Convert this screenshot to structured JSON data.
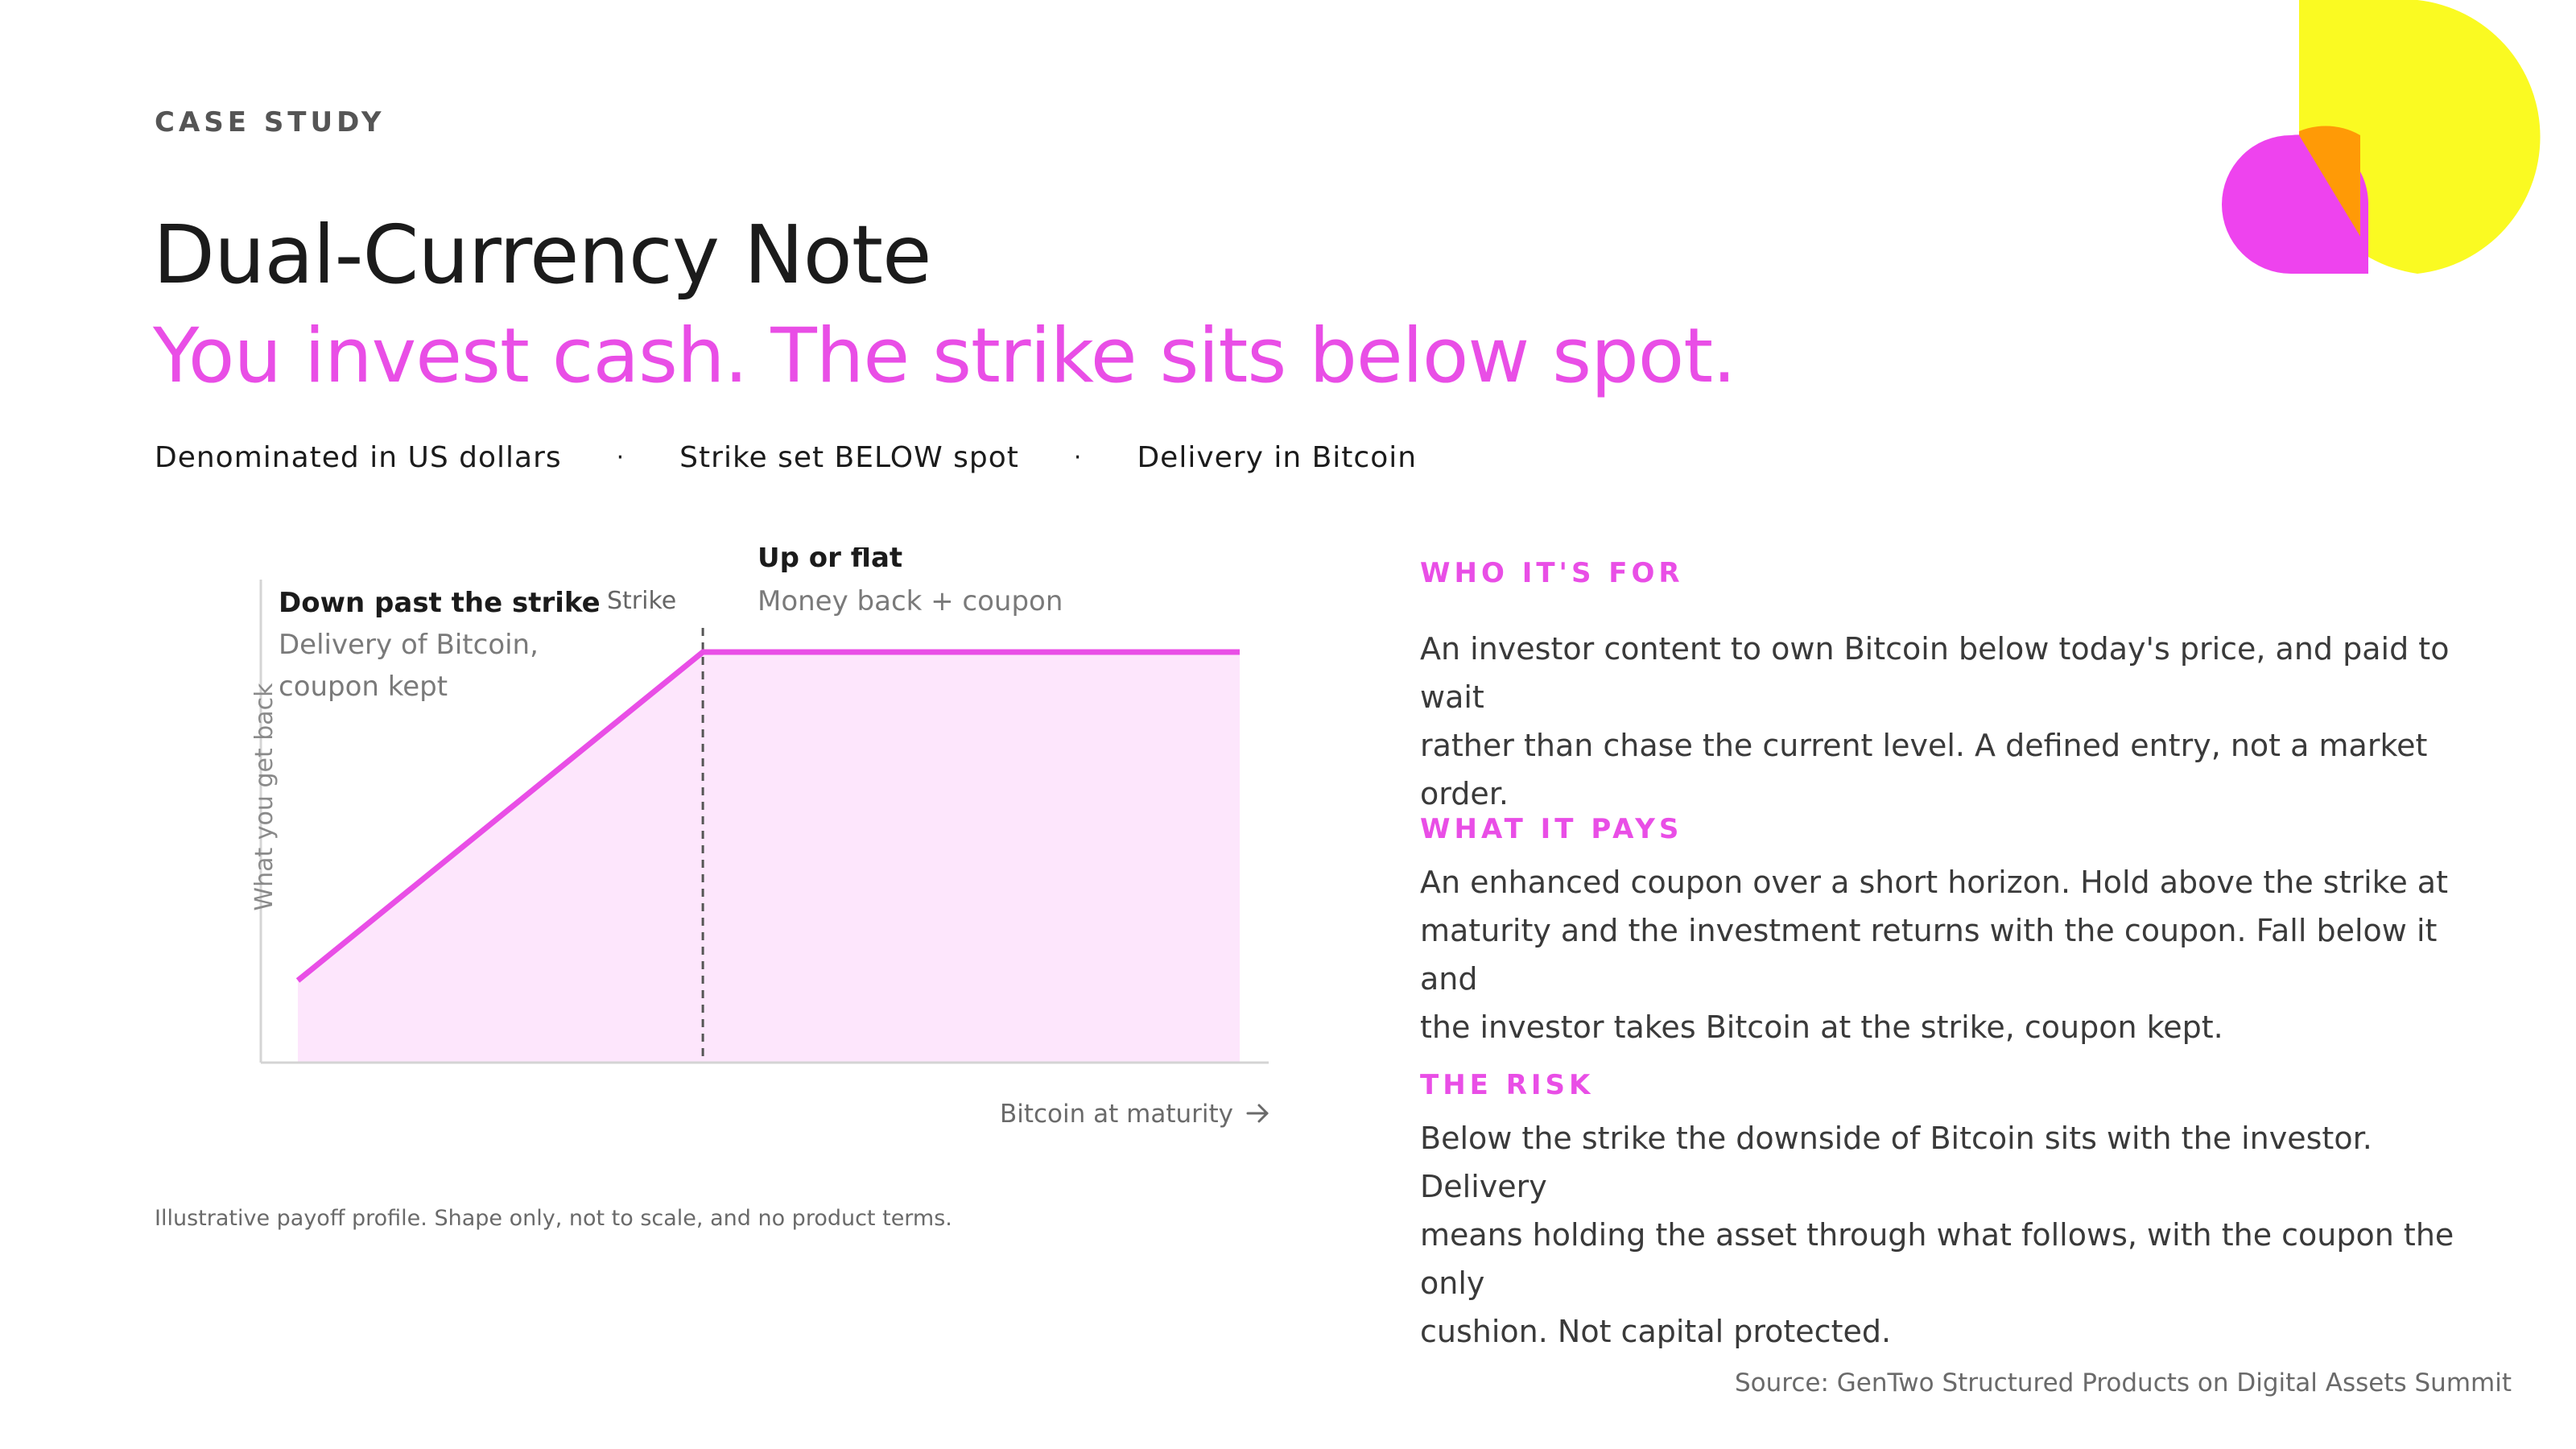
{
  "header": {
    "eyebrow": "CASE STUDY",
    "title": "Dual-Currency Note",
    "subtitle": "You invest cash. The strike sits below spot."
  },
  "tags": [
    "Denominated in US dollars",
    "Strike set BELOW spot",
    "Delivery in Bitcoin"
  ],
  "tag_separator": "·",
  "colors": {
    "accent": "#e94ee6",
    "fill": "#fde6fc",
    "yellow": "#fafa22",
    "orange": "#ff9a06"
  },
  "chart_data": {
    "type": "line",
    "x_label": "Bitcoin at maturity",
    "x_label_icon": "arrow-right-icon",
    "y_label": "What you get back",
    "strike_label": "Strike",
    "series": [
      {
        "x": [
          0,
          0.43,
          1
        ],
        "y": [
          0.17,
          0.85,
          0.85
        ]
      }
    ],
    "annotations": {
      "left_title": "Down past the strike",
      "left_body_1": "Delivery of Bitcoin,",
      "left_body_2": "coupon kept",
      "right_title": "Up or flat",
      "right_body": "Money back + coupon"
    },
    "xlim": [
      0,
      1
    ],
    "ylim": [
      0,
      1
    ],
    "grid": false
  },
  "footnote": "Illustrative payoff profile. Shape only, not to scale, and no product terms.",
  "sections": [
    {
      "heading": "WHO IT'S FOR",
      "body_lines": [
        "An investor content to own Bitcoin below today's price, and paid to wait",
        "rather than chase the current level. A defined entry, not a market order."
      ]
    },
    {
      "heading": "WHAT IT PAYS",
      "body_lines": [
        "An enhanced coupon over a short horizon. Hold above the strike at",
        "maturity and the investment returns with the coupon. Fall below it and",
        "the investor takes Bitcoin at the strike, coupon kept."
      ]
    },
    {
      "heading": "THE RISK",
      "body_lines": [
        "Below the strike the downside of Bitcoin sits with the investor. Delivery",
        "means holding the asset through what follows, with the coupon the only",
        "cushion. Not capital protected."
      ]
    }
  ],
  "source": "Source: GenTwo Structured Products on Digital Assets Summit"
}
